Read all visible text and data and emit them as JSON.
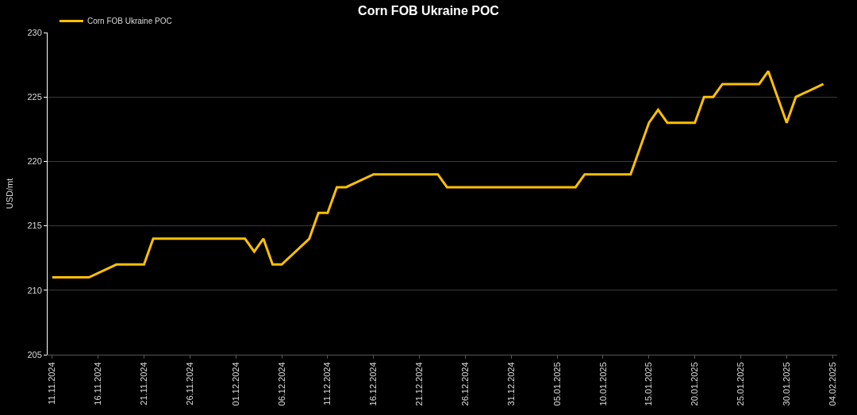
{
  "chart_data": {
    "type": "line",
    "title": "Corn FOB Ukraine POC",
    "ylabel": "USD/mt",
    "x": [
      "2024-11-11",
      "2024-11-15",
      "2024-11-18",
      "2024-11-21",
      "2024-11-22",
      "2024-12-02",
      "2024-12-03",
      "2024-12-04",
      "2024-12-05",
      "2024-12-06",
      "2024-12-09",
      "2024-12-10",
      "2024-12-11",
      "2024-12-12",
      "2024-12-13",
      "2024-12-16",
      "2024-12-23",
      "2024-12-24",
      "2025-01-07",
      "2025-01-08",
      "2025-01-13",
      "2025-01-15",
      "2025-01-16",
      "2025-01-17",
      "2025-01-20",
      "2025-01-21",
      "2025-01-22",
      "2025-01-23",
      "2025-01-27",
      "2025-01-28",
      "2025-01-30",
      "2025-01-31",
      "2025-02-03"
    ],
    "series": [
      {
        "name": "Corn FOB Ukraine POC",
        "color": "#ffc000",
        "values": [
          211,
          211,
          212,
          212,
          214,
          214,
          213,
          214,
          212,
          212,
          214,
          216,
          216,
          218,
          218,
          219,
          219,
          218,
          218,
          219,
          219,
          223,
          224,
          223,
          223,
          225,
          225,
          226,
          226,
          227,
          223,
          225,
          226
        ]
      }
    ],
    "xlim": [
      "2024-11-10T12:00",
      "2025-02-04T12:00"
    ],
    "xticks": [
      {
        "value": "2024-11-11",
        "label": "11.11.2024"
      },
      {
        "value": "2024-11-16",
        "label": "16.11.2024"
      },
      {
        "value": "2024-11-21",
        "label": "21.11.2024"
      },
      {
        "value": "2024-11-26",
        "label": "26.11.2024"
      },
      {
        "value": "2024-12-01",
        "label": "01.12.2024"
      },
      {
        "value": "2024-12-06",
        "label": "06.12.2024"
      },
      {
        "value": "2024-12-11",
        "label": "11.12.2024"
      },
      {
        "value": "2024-12-16",
        "label": "16.12.2024"
      },
      {
        "value": "2024-12-21",
        "label": "21.12.2024"
      },
      {
        "value": "2024-12-26",
        "label": "26.12.2024"
      },
      {
        "value": "2024-12-31",
        "label": "31.12.2024"
      },
      {
        "value": "2025-01-05",
        "label": "05.01.2025"
      },
      {
        "value": "2025-01-10",
        "label": "10.01.2025"
      },
      {
        "value": "2025-01-15",
        "label": "15.01.2025"
      },
      {
        "value": "2025-01-20",
        "label": "20.01.2025"
      },
      {
        "value": "2025-01-25",
        "label": "25.01.2025"
      },
      {
        "value": "2025-01-30",
        "label": "30.01.2025"
      },
      {
        "value": "2025-02-04",
        "label": "04.02.2025"
      }
    ],
    "ylim": [
      205,
      230
    ],
    "yticks": [
      205,
      210,
      215,
      220,
      225,
      230
    ],
    "grid": "y",
    "legend": "top left",
    "marker": "none",
    "line_style": "solid"
  }
}
